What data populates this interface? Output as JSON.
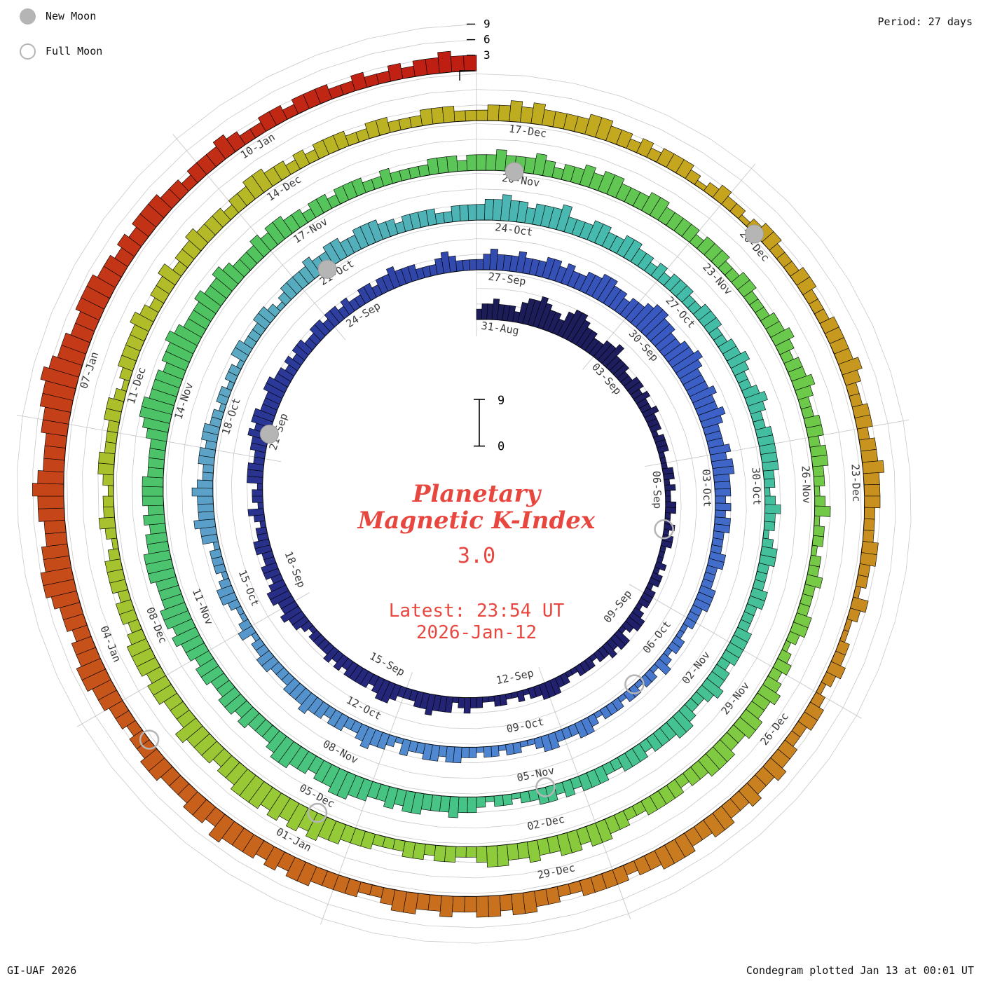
{
  "legend": {
    "new_moon": "New Moon",
    "full_moon": "Full Moon"
  },
  "header": {
    "period_label": "Period: 27 days"
  },
  "footer": {
    "credit": "GI-UAF 2026",
    "plotted": "Condegram plotted Jan 13 at 00:01 UT"
  },
  "center": {
    "title_line1": "Planetary",
    "title_line2": "Magnetic K-Index",
    "current_value": "3.0",
    "latest_line1": "Latest: 23:54 UT",
    "latest_line2": "2026-Jan-12"
  },
  "colors": {
    "accent_red": "#e8473f",
    "moon_gray": "#b5b5b5",
    "grid": "#c9c9c9",
    "label": "#3a3a3a"
  },
  "chart_data": {
    "type": "polar_bar_spiral",
    "title": "Planetary Magnetic K-Index",
    "start_date": "31-Aug",
    "end_date": "12-Jan",
    "period_days": 27,
    "values_per_day": 8,
    "k_scale": {
      "min": 0,
      "max": 9,
      "ticks": [
        3,
        6,
        9
      ]
    },
    "ring_start_labels": [
      "31-Aug",
      "27-Sep",
      "24-Oct",
      "20-Nov",
      "17-Dec"
    ],
    "date_labels": [
      "31-Aug",
      "03-Sep",
      "06-Sep",
      "09-Sep",
      "12-Sep",
      "15-Sep",
      "18-Sep",
      "21-Sep",
      "24-Sep",
      "27-Sep",
      "30-Sep",
      "03-Oct",
      "06-Oct",
      "09-Oct",
      "12-Oct",
      "15-Oct",
      "18-Oct",
      "21-Oct",
      "24-Oct",
      "27-Oct",
      "30-Oct",
      "02-Nov",
      "05-Nov",
      "08-Nov",
      "11-Nov",
      "14-Nov",
      "17-Nov",
      "20-Nov",
      "23-Nov",
      "26-Nov",
      "29-Nov",
      "02-Dec",
      "05-Dec",
      "08-Dec",
      "11-Dec",
      "14-Dec",
      "17-Dec",
      "20-Dec",
      "23-Dec",
      "26-Dec",
      "29-Dec",
      "01-Jan",
      "04-Jan",
      "07-Jan",
      "10-Jan"
    ],
    "new_moon_days": [
      21,
      51,
      81,
      111
    ],
    "full_moon_days": [
      7,
      37,
      66,
      96,
      125
    ],
    "color_stops": [
      {
        "t": 0.0,
        "c": "#1c1c58"
      },
      {
        "t": 0.1,
        "c": "#232272"
      },
      {
        "t": 0.17,
        "c": "#2c3a9a"
      },
      {
        "t": 0.23,
        "c": "#3a5cc4"
      },
      {
        "t": 0.3,
        "c": "#4e86d2"
      },
      {
        "t": 0.36,
        "c": "#5ea6c6"
      },
      {
        "t": 0.42,
        "c": "#43bcab"
      },
      {
        "t": 0.5,
        "c": "#46c488"
      },
      {
        "t": 0.57,
        "c": "#4fc360"
      },
      {
        "t": 0.64,
        "c": "#6cc94a"
      },
      {
        "t": 0.71,
        "c": "#93cb38"
      },
      {
        "t": 0.77,
        "c": "#b2bc28"
      },
      {
        "t": 0.82,
        "c": "#c6a51e"
      },
      {
        "t": 0.87,
        "c": "#c98420"
      },
      {
        "t": 0.92,
        "c": "#c8641c"
      },
      {
        "t": 0.96,
        "c": "#c43c18"
      },
      {
        "t": 1.0,
        "c": "#bf1d12"
      }
    ],
    "k_days": [
      "23343332",
      "45565443",
      "56654433",
      "44533322",
      "33232232",
      "22122211",
      "12212112",
      "21121221",
      "11212212",
      "22123321",
      "33232212",
      "22112233",
      "32212112",
      "21122321",
      "33343322",
      "23443233",
      "33232322",
      "22123343",
      "34432332",
      "23322123",
      "12213332",
      "23343443",
      "33443323",
      "23322332",
      "33232233",
      "23343332",
      "22343222",
      "23433343",
      "33443433",
      "44554434",
      "45665544",
      "55654445",
      "44543334",
      "34433323",
      "23322233",
      "22233322",
      "21122123",
      "12212212",
      "22123322",
      "23321122",
      "12212233",
      "23322312",
      "33432233",
      "23343332",
      "22332213",
      "21123321",
      "22213343",
      "33432233",
      "23322122",
      "12213322",
      "23321233",
      "33433443",
      "34443323",
      "33322333",
      "34454434",
      "44533344",
      "33443323",
      "23332233",
      "32233432",
      "23432233",
      "33322123",
      "22123322",
      "23322233",
      "33233432",
      "23443332",
      "33322333",
      "23233221",
      "22123343",
      "33443433",
      "44554434",
      "45543334",
      "34433443",
      "44545544",
      "45554434",
      "34443333",
      "45665554",
      "55654445",
      "44543334",
      "34433233",
      "23332232",
      "22233323",
      "33433343",
      "23343443",
      "33443333",
      "23332233",
      "22233432",
      "33432233",
      "23322123",
      "12212232",
      "22332123",
      "23433443",
      "34443323",
      "33322334",
      "43443343",
      "34432233",
      "23322233",
      "34454545",
      "45554434",
      "44533344",
      "34443233",
      "23332123",
      "22123322",
      "23321233",
      "33432334",
      "23343332",
      "33443323",
      "23332233",
      "22233322",
      "23343433",
      "33443323",
      "23332123",
      "22123322",
      "23322233",
      "33432233",
      "23343332",
      "22332213",
      "21122321",
      "23322334",
      "33433443",
      "34443323",
      "33322334",
      "43443343",
      "34432233",
      "33443434",
      "44534433",
      "34433233",
      "44554434",
      "45665544",
      "55654445",
      "56676554",
      "45554434",
      "34443323",
      "33432233",
      "23332232",
      "23233433"
    ]
  }
}
